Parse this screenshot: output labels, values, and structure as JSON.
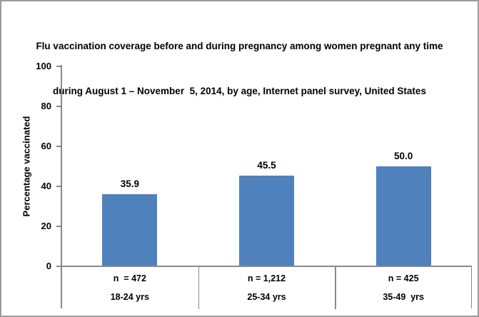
{
  "chart_data": {
    "type": "bar",
    "title": "Flu vaccination coverage before and during pregnancy among women pregnant any time during August 1 – November  5, 2014, by age, Internet panel survey, United States",
    "title_lines": [
      "Flu vaccination coverage before and during pregnancy among women pregnant any time",
      "during August 1 – November  5, 2014, by age, Internet panel survey, United States"
    ],
    "categories": [
      "18-24 yrs",
      "25-34 yrs",
      "35-49  yrs"
    ],
    "sample_sizes": [
      "n  = 472",
      "n = 1,212",
      "n = 425"
    ],
    "values": [
      35.9,
      45.5,
      50.0
    ],
    "value_labels": [
      "35.9",
      "45.5",
      "50.0"
    ],
    "xlabel": "",
    "ylabel": "Percentage vaccinated",
    "ylim": [
      0,
      100
    ],
    "yticks": [
      0,
      20,
      40,
      60,
      80,
      100
    ],
    "grid": false,
    "legend": false,
    "bar_color": "#4F81BD",
    "axis_color": "#898989",
    "frame_border_color": "#9a9a9a",
    "text_color": "#000000"
  }
}
